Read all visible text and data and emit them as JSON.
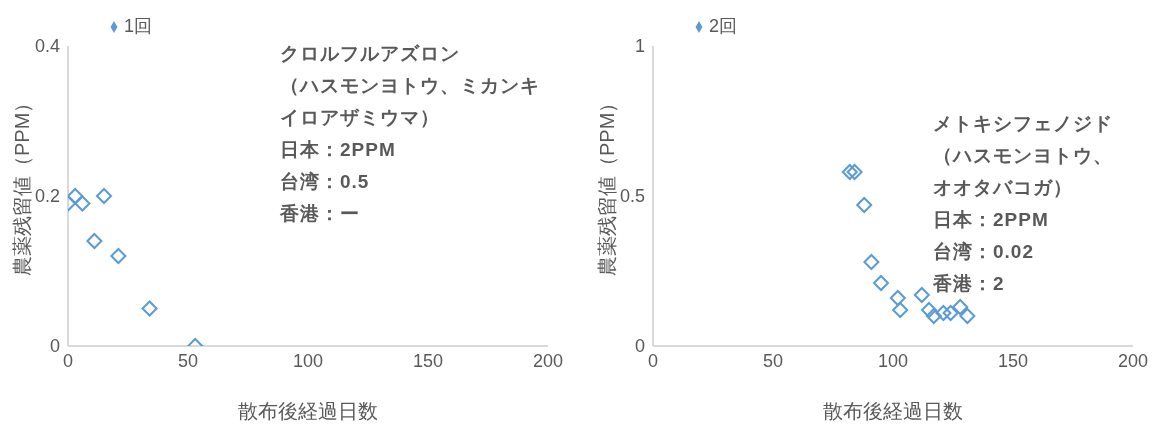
{
  "chart_data": [
    {
      "type": "scatter",
      "xlabel": "散布後経過日数",
      "ylabel": "農薬残留値（PPM）",
      "xlim": [
        0,
        200
      ],
      "xticks": [
        0,
        50,
        100,
        150,
        200
      ],
      "ylim": [
        0,
        0.4
      ],
      "yticks": [
        0,
        0.2,
        0.4
      ],
      "grid": false,
      "legend": "top left",
      "marker": "diamond",
      "series": [
        {
          "name": "1回",
          "color": "#5b9bd5",
          "x": [
            0,
            3,
            6,
            15,
            11,
            21,
            34,
            53
          ],
          "values": [
            0.19,
            0.2,
            0.19,
            0.2,
            0.14,
            0.12,
            0.05,
            0
          ]
        }
      ],
      "annotations": [
        "クロルフルアズロン",
        "（ハスモンヨトウ、ミカンキイロアザミウマ）",
        "日本：2PPM",
        "台湾：0.5",
        "香港：ー"
      ]
    },
    {
      "type": "scatter",
      "xlabel": "散布後経過日数",
      "ylabel": "農薬残留値（PPM）",
      "xlim": [
        0,
        200
      ],
      "xticks": [
        0,
        50,
        100,
        150,
        200
      ],
      "ylim": [
        0,
        1
      ],
      "yticks": [
        0,
        0.5,
        1
      ],
      "grid": false,
      "legend": "top left",
      "marker": "diamond",
      "series": [
        {
          "name": "2回",
          "color": "#5b9bd5",
          "x": [
            82,
            84,
            88,
            91,
            95,
            102,
            103,
            112,
            115,
            117,
            121,
            124,
            128,
            131
          ],
          "values": [
            0.58,
            0.58,
            0.47,
            0.28,
            0.21,
            0.16,
            0.12,
            0.17,
            0.12,
            0.1,
            0.11,
            0.11,
            0.13,
            0.1
          ]
        }
      ],
      "annotations": [
        "メトキシフェノジド",
        "（ハスモンヨトウ、オオタバコガ）",
        "日本：2PPM",
        "台湾：0.02",
        "香港：2"
      ]
    }
  ]
}
